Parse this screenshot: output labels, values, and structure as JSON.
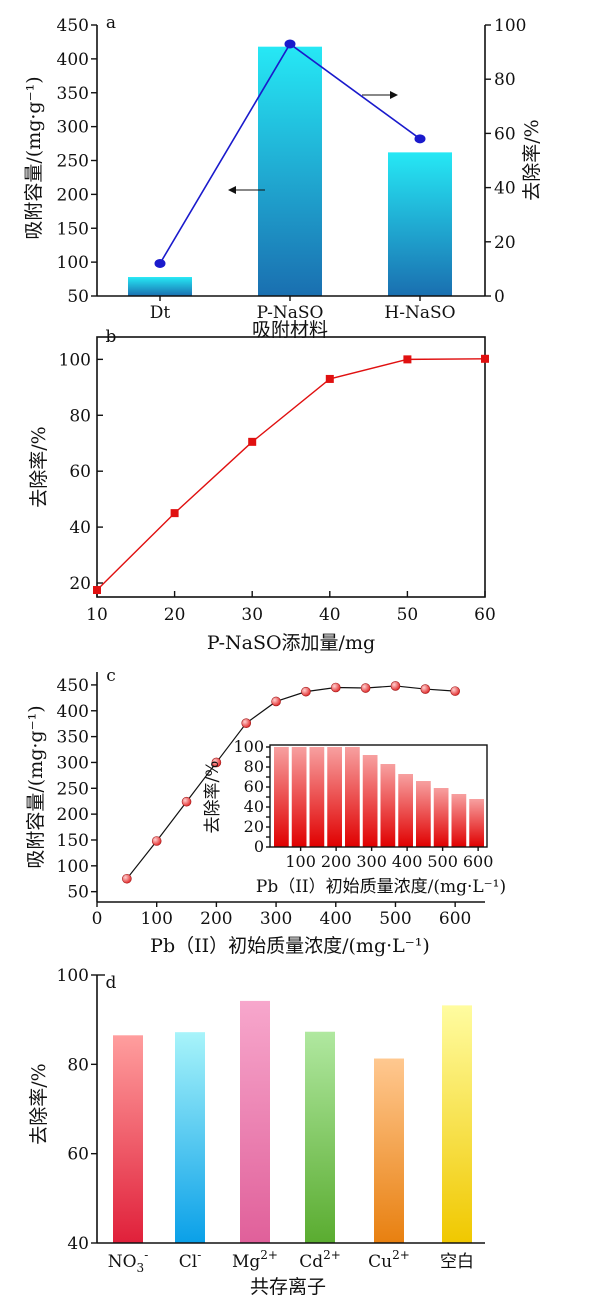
{
  "chart_data": [
    {
      "panel": "a",
      "type": "bar",
      "xlabel": "吸附材料",
      "ylabel": "吸附容量/(mg·g⁻¹)",
      "y2label": "去除率/%",
      "categories": [
        "Dt",
        "P-NaSO",
        "H-NaSO"
      ],
      "ylim": [
        50,
        450
      ],
      "yticks": [
        50,
        100,
        150,
        200,
        250,
        300,
        350,
        400,
        450
      ],
      "y2lim": [
        0,
        100
      ],
      "y2ticks": [
        0,
        20,
        40,
        60,
        80,
        100
      ],
      "series": [
        {
          "kind": "bar",
          "axis": "left",
          "values": [
            78,
            418,
            262
          ]
        },
        {
          "kind": "line",
          "axis": "right",
          "values": [
            12,
            93,
            58
          ]
        }
      ],
      "colors": {
        "bar_top": "#26e8f5",
        "bar_bottom": "#1a6fb0",
        "line": "#1a1acc"
      }
    },
    {
      "panel": "b",
      "type": "line",
      "xlabel": "P-NaSO添加量/mg",
      "ylabel": "去除率/%",
      "xlim": [
        10,
        60
      ],
      "xticks": [
        10,
        20,
        30,
        40,
        50,
        60
      ],
      "ylim": [
        15,
        108
      ],
      "yticks": [
        20,
        40,
        60,
        80,
        100
      ],
      "x": [
        10,
        20,
        30,
        40,
        50,
        60
      ],
      "series": [
        {
          "values": [
            17.5,
            45,
            70.5,
            93,
            100,
            100.2
          ]
        }
      ],
      "colors": {
        "line": "#e01010"
      }
    },
    {
      "panel": "c",
      "type": "scatter",
      "xlabel": "Pb（II）初始质量浓度/(mg·L⁻¹)",
      "ylabel": "吸附容量/(mg·g⁻¹)",
      "xlim": [
        0,
        650
      ],
      "xticks": [
        0,
        100,
        200,
        300,
        400,
        500,
        600
      ],
      "ylim": [
        30,
        475
      ],
      "yticks": [
        50,
        100,
        150,
        200,
        250,
        300,
        350,
        400,
        450
      ],
      "x": [
        50,
        100,
        150,
        200,
        250,
        300,
        350,
        400,
        450,
        500,
        550,
        600
      ],
      "series": [
        {
          "values": [
            75,
            148,
            224,
            300,
            376,
            418,
            437,
            445,
            444,
            448,
            442,
            438
          ]
        }
      ],
      "inset": {
        "type": "bar",
        "xlabel": "Pb（II）初始质量浓度/(mg·L⁻¹)",
        "ylabel": "去除率/%",
        "categories": [
          50,
          100,
          150,
          200,
          250,
          300,
          350,
          400,
          450,
          500,
          550,
          600
        ],
        "xticks": [
          100,
          200,
          300,
          400,
          500,
          600
        ],
        "ylim": [
          0,
          100
        ],
        "yticks": [
          0,
          10,
          20,
          30,
          40,
          50,
          60,
          70,
          80,
          90,
          100
        ],
        "ytick_labels": [
          0,
          20,
          40,
          60,
          80,
          100
        ],
        "values": [
          100,
          100,
          100,
          100,
          100,
          92,
          83,
          73,
          66,
          59,
          53,
          48
        ]
      },
      "colors": {
        "line": "#111111",
        "point": "#e23030",
        "inset_bar_top": "#f7a0a0",
        "inset_bar_bottom": "#e00000"
      }
    },
    {
      "panel": "d",
      "type": "bar",
      "xlabel": "共存离子",
      "ylabel": "去除率/%",
      "categories": [
        {
          "base": "NO",
          "sub": "3",
          "sup": "-"
        },
        {
          "base": "Cl",
          "sub": "",
          "sup": "-"
        },
        {
          "base": "Mg",
          "sub": "",
          "sup": "2+"
        },
        {
          "base": "Cd",
          "sub": "",
          "sup": "2+"
        },
        {
          "base": "Cu",
          "sub": "",
          "sup": "2+"
        },
        {
          "base": "空白",
          "sub": "",
          "sup": ""
        }
      ],
      "ylim": [
        40,
        100
      ],
      "yticks": [
        40,
        60,
        80,
        100
      ],
      "values": [
        86.5,
        87.2,
        94.2,
        87.3,
        81.3,
        93.2
      ],
      "colors": [
        {
          "top": "#ff9e9e",
          "bottom": "#e0203a"
        },
        {
          "top": "#a8f4fa",
          "bottom": "#0aa0e8"
        },
        {
          "top": "#f7a7cc",
          "bottom": "#e0609a"
        },
        {
          "top": "#b0e8a0",
          "bottom": "#5aac30"
        },
        {
          "top": "#ffc890",
          "bottom": "#e88010"
        },
        {
          "top": "#fffca0",
          "bottom": "#f0c800"
        }
      ]
    }
  ]
}
